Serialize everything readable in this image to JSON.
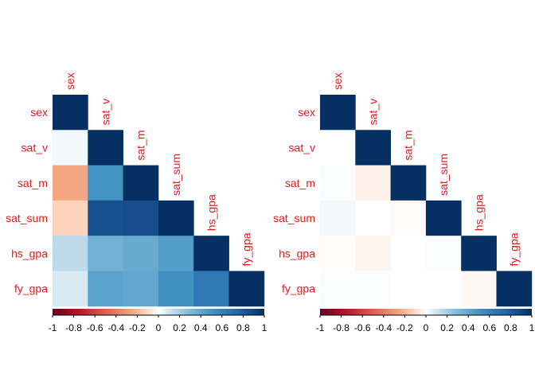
{
  "chart_data": [
    {
      "type": "heatmap",
      "layout": "lower-triangle",
      "variables": [
        "sex",
        "sat_v",
        "sat_m",
        "sat_sum",
        "hs_gpa",
        "fy_gpa"
      ],
      "matrix": [
        [
          1.0,
          null,
          null,
          null,
          null,
          null
        ],
        [
          0.03,
          1.0,
          null,
          null,
          null,
          null
        ],
        [
          -0.25,
          0.5,
          1.0,
          null,
          null,
          null
        ],
        [
          -0.12,
          0.85,
          0.86,
          1.0,
          null,
          null
        ],
        [
          0.15,
          0.35,
          0.38,
          0.45,
          1.0,
          null
        ],
        [
          0.08,
          0.42,
          0.4,
          0.52,
          0.65,
          1.0
        ]
      ],
      "colorbar": {
        "ticks": [
          "-1",
          "-0.8",
          "-0.6",
          "-0.4",
          "-0.2",
          "0",
          "0.2",
          "0.4",
          "0.6",
          "0.8",
          "1"
        ],
        "range": [
          -1,
          1
        ]
      }
    },
    {
      "type": "heatmap",
      "layout": "lower-triangle",
      "variables": [
        "sex",
        "sat_v",
        "sat_m",
        "sat_sum",
        "hs_gpa",
        "fy_gpa"
      ],
      "matrix": [
        [
          1.0,
          null,
          null,
          null,
          null,
          null
        ],
        [
          0.0,
          1.0,
          null,
          null,
          null,
          null
        ],
        [
          0.01,
          -0.04,
          1.0,
          null,
          null,
          null
        ],
        [
          0.03,
          0.0,
          -0.01,
          1.0,
          null,
          null
        ],
        [
          -0.01,
          -0.03,
          0.0,
          0.01,
          1.0,
          null
        ],
        [
          0.01,
          0.01,
          0.0,
          0.0,
          -0.02,
          1.0
        ]
      ],
      "colorbar": {
        "ticks": [
          "-1",
          "-0.8",
          "-0.6",
          "-0.4",
          "-0.2",
          "0",
          "0.2",
          "0.4",
          "0.6",
          "0.8",
          "1"
        ],
        "range": [
          -1,
          1
        ]
      }
    }
  ]
}
